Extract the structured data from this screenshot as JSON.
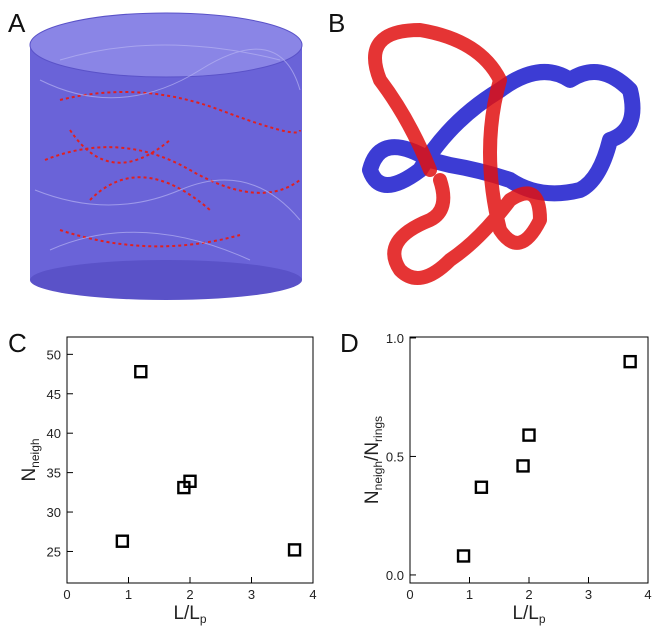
{
  "panels": {
    "a": {
      "label": "A"
    },
    "b": {
      "label": "B"
    }
  },
  "chart_data": [
    {
      "type": "scatter",
      "panel_label": "C",
      "marker": "square",
      "color": "#000000",
      "xlabel": [
        {
          "text": "L/L"
        },
        {
          "text": "p",
          "sub": true
        }
      ],
      "ylabel": [
        {
          "text": "N"
        },
        {
          "text": "neigh",
          "sub": true
        }
      ],
      "x": [
        0.9,
        1.2,
        1.9,
        2.0,
        3.7
      ],
      "values": [
        26.3,
        47.8,
        33.1,
        33.9,
        25.2
      ],
      "xlim": [
        0,
        4
      ],
      "ylim": [
        21,
        52.2
      ],
      "xticks": [
        0,
        1,
        2,
        3,
        4
      ],
      "yticks": [
        25,
        30,
        35,
        40,
        45,
        50
      ]
    },
    {
      "type": "scatter",
      "panel_label": "D",
      "marker": "square",
      "color": "#000000",
      "xlabel": [
        {
          "text": "L/L"
        },
        {
          "text": "p",
          "sub": true
        }
      ],
      "ylabel": [
        {
          "text": "N"
        },
        {
          "text": "neigh",
          "sub": true
        },
        {
          "text": "/N"
        },
        {
          "text": "rings",
          "sub": true
        }
      ],
      "x": [
        0.9,
        1.2,
        1.9,
        2.0,
        3.7
      ],
      "values": [
        0.08,
        0.37,
        0.46,
        0.59,
        0.9
      ],
      "xlim": [
        0,
        4
      ],
      "ylim": [
        -0.034,
        1.004
      ],
      "xticks": [
        0,
        1,
        2,
        3,
        4
      ],
      "yticks": [
        {
          "value": 0,
          "label": "0.0"
        },
        {
          "value": 0.5,
          "label": "0.5"
        },
        {
          "value": 1,
          "label": "1.0"
        }
      ]
    }
  ]
}
